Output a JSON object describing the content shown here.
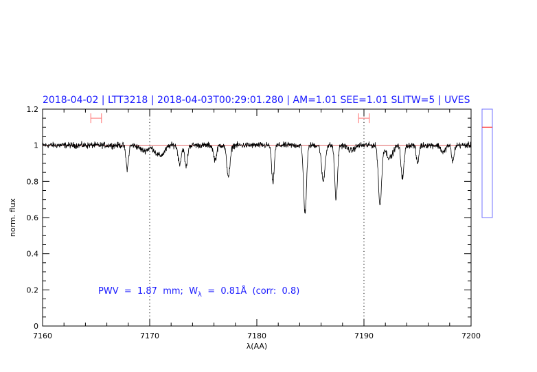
{
  "chart_data": {
    "type": "line",
    "title": "2018-04-02 | LTT3218 | 2018-04-03T00:29:01.280 | AM=1.01 SEE=1.01 SLITW=5 | UVES",
    "xlabel": "λ(AA)",
    "ylabel": "norm. flux",
    "xlim": [
      7160,
      7200
    ],
    "ylim": [
      0,
      1.2
    ],
    "x_ticks": [
      7160,
      7170,
      7180,
      7190,
      7200
    ],
    "x_tick_labels": [
      "7160",
      "7170",
      "7180",
      "7190",
      "7200"
    ],
    "y_ticks": [
      0,
      0.2,
      0.4,
      0.6,
      0.8,
      1,
      1.2
    ],
    "y_tick_labels": [
      "0",
      "0.2",
      "0.4",
      "0.6",
      "0.8",
      "1",
      "1.2"
    ],
    "grid": false,
    "reference_line": 1.0,
    "vertical_markers": [
      7170,
      7190
    ],
    "error_bars": [
      {
        "xmin": 7164.5,
        "xmax": 7165.5,
        "y": 1.15
      },
      {
        "xmin": 7189.5,
        "xmax": 7190.5,
        "y": 1.15
      }
    ],
    "continuum_noise": 0.012,
    "absorption_lines": [
      {
        "center": 7167.9,
        "depth": 0.13,
        "width": 0.12
      },
      {
        "center": 7169.5,
        "depth": 0.03,
        "width": 0.4
      },
      {
        "center": 7170.7,
        "depth": 0.04,
        "width": 0.3
      },
      {
        "center": 7171.2,
        "depth": 0.04,
        "width": 0.3
      },
      {
        "center": 7172.8,
        "depth": 0.1,
        "width": 0.15
      },
      {
        "center": 7173.4,
        "depth": 0.12,
        "width": 0.13
      },
      {
        "center": 7176.1,
        "depth": 0.08,
        "width": 0.15
      },
      {
        "center": 7177.35,
        "depth": 0.17,
        "width": 0.16
      },
      {
        "center": 7181.5,
        "depth": 0.21,
        "width": 0.12
      },
      {
        "center": 7184.5,
        "depth": 0.37,
        "width": 0.14
      },
      {
        "center": 7186.2,
        "depth": 0.2,
        "width": 0.16
      },
      {
        "center": 7187.4,
        "depth": 0.3,
        "width": 0.13
      },
      {
        "center": 7188.8,
        "depth": 0.03,
        "width": 0.3
      },
      {
        "center": 7191.5,
        "depth": 0.33,
        "width": 0.15
      },
      {
        "center": 7192.4,
        "depth": 0.07,
        "width": 0.3
      },
      {
        "center": 7193.6,
        "depth": 0.18,
        "width": 0.14
      },
      {
        "center": 7195.0,
        "depth": 0.1,
        "width": 0.12
      },
      {
        "center": 7197.4,
        "depth": 0.04,
        "width": 0.2
      },
      {
        "center": 7198.3,
        "depth": 0.09,
        "width": 0.12
      }
    ],
    "annotation": {
      "prefix": "PWV  =  1.87  mm;  W",
      "subscript": "λ",
      "suffix": "  =  0.81Å  (corr:  0.8)"
    },
    "side_panel": {
      "ylim": [
        0,
        1.2
      ],
      "marker_value": 1.0
    }
  },
  "colors": {
    "title": "#1a1aff",
    "spectrum": "#000000",
    "reference": "#e06060",
    "error_bar": "#ff7070",
    "side_panel_border": "#7070ff",
    "side_panel_marker": "#ff3030"
  }
}
